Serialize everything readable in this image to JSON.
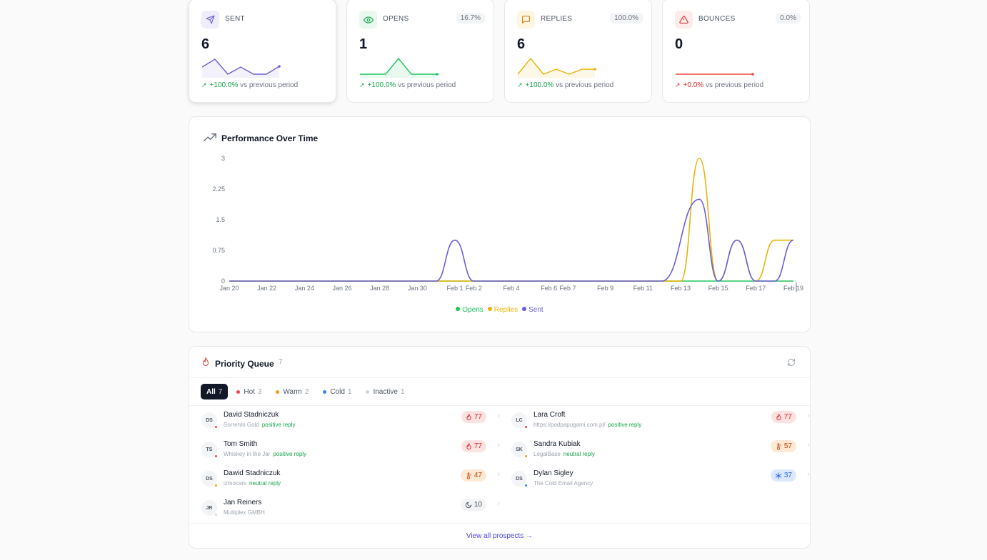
{
  "kpis": [
    {
      "id": "sent",
      "label": "SENT",
      "pct": "",
      "value": "6",
      "delta": "+100.0%",
      "delta_suffix": "vs previous period",
      "color": "#6b5fd6",
      "icon": "send-icon"
    },
    {
      "id": "opens",
      "label": "OPENS",
      "pct": "16.7%",
      "value": "1",
      "delta": "+100.0%",
      "delta_suffix": "vs previous period",
      "color": "#22c55e",
      "icon": "eye-icon"
    },
    {
      "id": "replies",
      "label": "REPLIES",
      "pct": "100.0%",
      "value": "6",
      "delta": "+100.0%",
      "delta_suffix": "vs previous period",
      "color": "#eab308",
      "icon": "message-icon"
    },
    {
      "id": "bounces",
      "label": "BOUNCES",
      "pct": "0.0%",
      "value": "0",
      "delta": "+0.0%",
      "delta_suffix": "vs previous period",
      "color": "#ef4444",
      "icon": "alert-icon"
    }
  ],
  "performance": {
    "title": "Performance Over Time",
    "legend": [
      {
        "name": "Opens",
        "color": "#22c55e"
      },
      {
        "name": "Replies",
        "color": "#eab308"
      },
      {
        "name": "Sent",
        "color": "#6b5fd6"
      }
    ]
  },
  "chart_data": {
    "type": "line",
    "y_ticks": [
      "3",
      "2.25",
      "1.5",
      "0.75",
      "0"
    ],
    "ylim": [
      0,
      3
    ],
    "x_ticks": [
      "Jan 20",
      "Jan 22",
      "Jan 24",
      "Jan 26",
      "Jan 28",
      "Jan 30",
      "Feb 1",
      "Feb 2",
      "Feb 4",
      "Feb 6",
      "Feb 7",
      "Feb 9",
      "Feb 11",
      "Feb 13",
      "Feb 15",
      "Feb 17",
      "Feb 19"
    ],
    "series": [
      {
        "name": "Opens",
        "points": [
          [
            "Feb 13",
            0
          ],
          [
            "Feb 14",
            0
          ],
          [
            "Feb 15",
            0
          ],
          [
            "Feb 16",
            0
          ],
          [
            "Feb 17",
            0
          ],
          [
            "Feb 18",
            0
          ],
          [
            "Feb 19",
            0
          ]
        ]
      },
      {
        "name": "Replies",
        "points": [
          [
            "Feb 13",
            0
          ],
          [
            "Feb 14",
            3
          ],
          [
            "Feb 15",
            0
          ],
          [
            "Feb 16",
            1
          ],
          [
            "Feb 17",
            0
          ],
          [
            "Feb 18",
            1
          ],
          [
            "Feb 19",
            1
          ]
        ]
      },
      {
        "name": "Sent",
        "points": [
          [
            "Jan 31",
            0
          ],
          [
            "Feb 1",
            1
          ],
          [
            "Feb 2",
            0
          ],
          [
            "Feb 12",
            0
          ],
          [
            "Feb 14",
            2
          ],
          [
            "Feb 15",
            0
          ],
          [
            "Feb 16",
            1
          ],
          [
            "Feb 17",
            0
          ],
          [
            "Feb 18",
            0
          ],
          [
            "Feb 19",
            1
          ]
        ]
      }
    ]
  },
  "queue": {
    "title": "Priority Queue",
    "count": "7",
    "filters": [
      {
        "label": "All",
        "count": "7",
        "selected": true,
        "color": ""
      },
      {
        "label": "Hot",
        "count": "3",
        "selected": false,
        "color": "#ef4444"
      },
      {
        "label": "Warm",
        "count": "2",
        "selected": false,
        "color": "#f59e0b"
      },
      {
        "label": "Cold",
        "count": "1",
        "selected": false,
        "color": "#3b82f6"
      },
      {
        "label": "Inactive",
        "count": "1",
        "selected": false,
        "color": "#d1d5db"
      }
    ],
    "prospects": [
      {
        "initials": "DS",
        "name": "David Stadniczuk",
        "company": "Sorrento Gold",
        "tag": "positive reply",
        "score": "77",
        "tier": "hot"
      },
      {
        "initials": "LC",
        "name": "Lara Croft",
        "company": "https://podpapugami.com.pl/",
        "tag": "positive reply",
        "score": "77",
        "tier": "hot"
      },
      {
        "initials": "TS",
        "name": "Tom Smith",
        "company": "Whiskey in the Jar",
        "tag": "positive reply",
        "score": "77",
        "tier": "hot"
      },
      {
        "initials": "SK",
        "name": "Sandra Kubiak",
        "company": "LegalBase",
        "tag": "neutral reply",
        "score": "57",
        "tier": "warm"
      },
      {
        "initials": "DS",
        "name": "Dawid Stadniczuk",
        "company": "izmocars",
        "tag": "neutral reply",
        "score": "47",
        "tier": "warm"
      },
      {
        "initials": "DS",
        "name": "Dylan Sigley",
        "company": "The Cold Email Agency",
        "tag": "",
        "score": "37",
        "tier": "cold"
      },
      {
        "initials": "JR",
        "name": "Jan Reiners",
        "company": "Multiplex GMBH",
        "tag": "",
        "score": "10",
        "tier": "inactive"
      }
    ],
    "view_all": "View all prospects →"
  }
}
